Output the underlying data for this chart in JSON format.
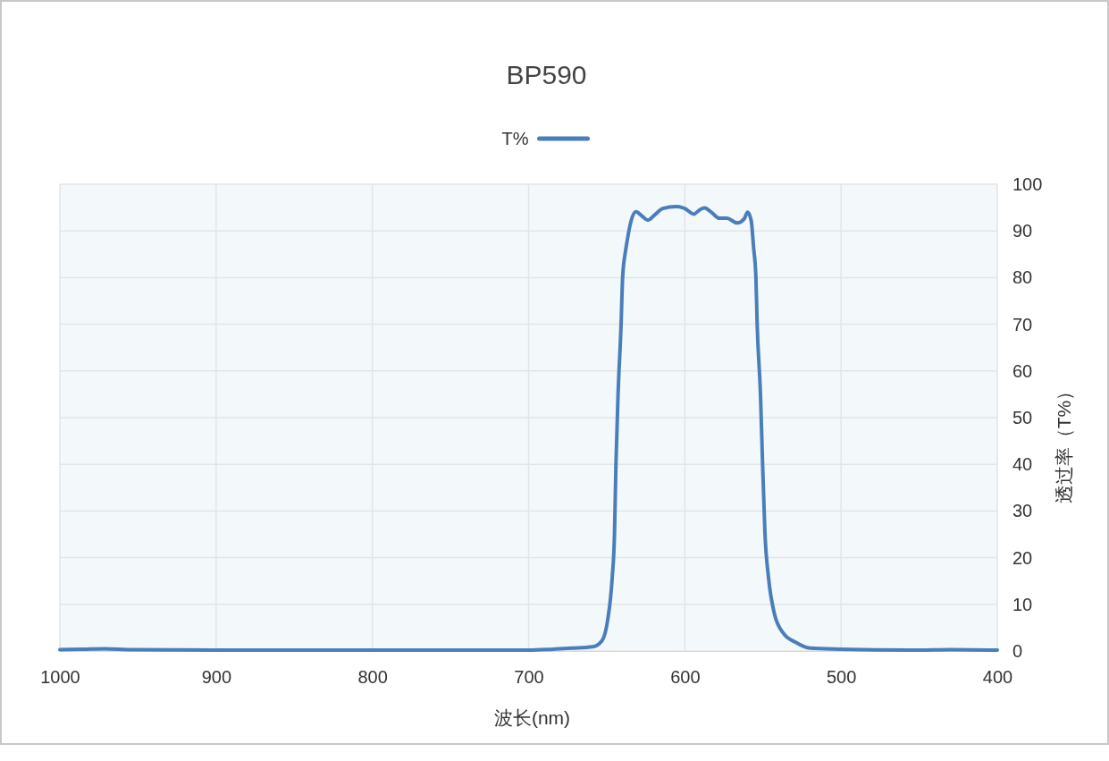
{
  "chart_data": {
    "type": "line",
    "title": "BP590",
    "xlabel": "波长(nm)",
    "ylabel": "透过率（T%）",
    "x": [
      1000,
      985,
      971,
      955,
      900,
      850,
      800,
      750,
      700,
      684,
      672,
      659,
      653,
      649.4,
      646.5,
      645,
      644.1,
      642.7,
      640.8,
      639.8,
      637.9,
      637,
      634.5,
      631.3,
      627.5,
      623.6,
      619,
      614.1,
      605.5,
      600,
      594.3,
      590.5,
      587.4,
      583,
      577.9,
      573.1,
      566.4,
      562,
      559.8,
      557.5,
      556,
      554.5,
      553.7,
      551.6,
      550.2,
      548.7,
      546.4,
      542.6,
      536.9,
      529.3,
      519.7,
      500.7,
      450,
      430,
      400
    ],
    "series": [
      {
        "name": "T%",
        "color": "#4a7ebb",
        "values": [
          0.3,
          0.4,
          0.5,
          0.3,
          0.2,
          0.2,
          0.2,
          0.2,
          0.2,
          0.4,
          0.6,
          0.9,
          2.2,
          6.6,
          15.6,
          25.2,
          39.8,
          55.2,
          69.9,
          80.1,
          85.8,
          87.7,
          92,
          94.1,
          93.2,
          92.3,
          93.5,
          94.8,
          95.2,
          94.8,
          93.6,
          94.5,
          94.9,
          94,
          92.7,
          92.7,
          91.7,
          92.6,
          94,
          92.2,
          86.5,
          80,
          70,
          55.2,
          39.8,
          25.2,
          15.6,
          7.9,
          3.8,
          1.9,
          0.6,
          0.4,
          0.2,
          0.3,
          0.2
        ]
      }
    ],
    "xlim": [
      1000,
      400
    ],
    "xticks": [
      1000,
      900,
      800,
      700,
      600,
      500,
      400
    ],
    "ylim": [
      0,
      100
    ],
    "yticks": [
      0,
      10,
      20,
      30,
      40,
      50,
      60,
      70,
      80,
      90,
      100
    ],
    "grid": true,
    "legend": "top",
    "marker": "none",
    "line_style": "solid"
  }
}
